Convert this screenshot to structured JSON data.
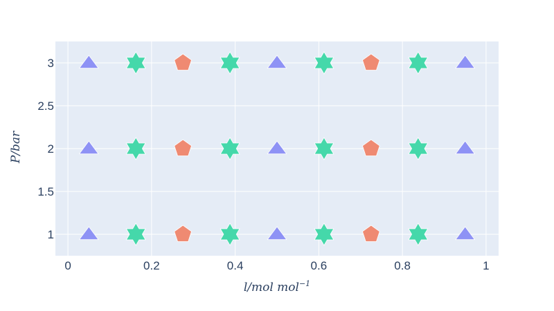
{
  "chart_data": {
    "type": "scatter",
    "title": "",
    "xlabel": "l/mol mol",
    "xlabel_superscript": "−1",
    "ylabel": "P/bar",
    "xlim": [
      -0.03,
      1.03
    ],
    "ylim": [
      0.75,
      3.25
    ],
    "x_ticks": [
      0,
      0.2,
      0.4,
      0.6,
      0.8,
      1
    ],
    "x_tick_labels": [
      "0",
      "0.2",
      "0.4",
      "0.6",
      "0.8",
      "1"
    ],
    "y_ticks": [
      1,
      1.5,
      2,
      2.5,
      3
    ],
    "y_tick_labels": [
      "1",
      "1.5",
      "2",
      "2.5",
      "3"
    ],
    "grid": true,
    "legend": "none",
    "plot_background": "#e5ecf6",
    "grid_color": "#ffffff",
    "series": [
      {
        "symbol": "triangle-up",
        "color": "#8e92f5",
        "points": [
          {
            "x": 0.05,
            "y": 1
          },
          {
            "x": 0.05,
            "y": 2
          },
          {
            "x": 0.05,
            "y": 3
          },
          {
            "x": 0.5,
            "y": 1
          },
          {
            "x": 0.5,
            "y": 2
          },
          {
            "x": 0.5,
            "y": 3
          },
          {
            "x": 0.95,
            "y": 1
          },
          {
            "x": 0.95,
            "y": 2
          },
          {
            "x": 0.95,
            "y": 3
          }
        ]
      },
      {
        "symbol": "hexagram",
        "color": "#45d8aa",
        "points": [
          {
            "x": 0.1625,
            "y": 1
          },
          {
            "x": 0.1625,
            "y": 2
          },
          {
            "x": 0.1625,
            "y": 3
          },
          {
            "x": 0.3875,
            "y": 1
          },
          {
            "x": 0.3875,
            "y": 2
          },
          {
            "x": 0.3875,
            "y": 3
          },
          {
            "x": 0.6125,
            "y": 1
          },
          {
            "x": 0.6125,
            "y": 2
          },
          {
            "x": 0.6125,
            "y": 3
          },
          {
            "x": 0.8375,
            "y": 1
          },
          {
            "x": 0.8375,
            "y": 2
          },
          {
            "x": 0.8375,
            "y": 3
          }
        ]
      },
      {
        "symbol": "pentagon",
        "color": "#ef8a72",
        "points": [
          {
            "x": 0.275,
            "y": 1
          },
          {
            "x": 0.275,
            "y": 2
          },
          {
            "x": 0.275,
            "y": 3
          },
          {
            "x": 0.725,
            "y": 1
          },
          {
            "x": 0.725,
            "y": 2
          },
          {
            "x": 0.725,
            "y": 3
          }
        ]
      }
    ]
  }
}
